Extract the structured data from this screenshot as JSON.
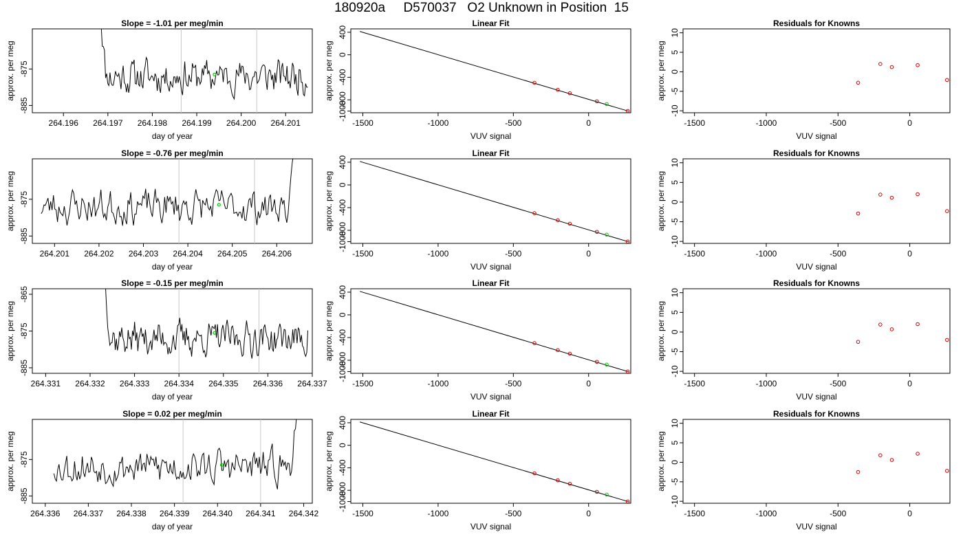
{
  "figure": {
    "title": "180920a     D570037   O2 Unknown in Position  15"
  },
  "colors": {
    "trace": "#000000",
    "marker_green": "#00c800",
    "point_red": "#cc0000",
    "vline_gray": "#c8c8c8"
  },
  "chart_data": [
    {
      "row": 1,
      "type": "line",
      "title": "Slope =  -1.01  per meg/min",
      "xlabel": "day of year",
      "ylabel": "approx. per meg",
      "xlim": [
        264.1953,
        264.2016
      ],
      "ylim": [
        -887,
        -864
      ],
      "xticks": [
        264.196,
        264.197,
        264.198,
        264.199,
        264.2,
        264.201
      ],
      "xtick_labels": [
        "264.196",
        "264.197",
        "264.198",
        "264.199",
        "264.200",
        "264.201"
      ],
      "yticks": [
        -885,
        -875
      ],
      "ytick_labels": [
        "-885",
        "-875"
      ],
      "x_start": 264.1968,
      "x_end": 264.2015,
      "start_spike": true,
      "end_spike": false,
      "vlines": [
        264.19865,
        264.20035
      ],
      "green_marker": {
        "x": 264.1994,
        "y": -876.5
      },
      "trace_seed": 11
    },
    {
      "row": 1,
      "type": "scatter",
      "title": "Linear Fit",
      "xlabel": "VUV signal",
      "ylabel": "approx. per meg",
      "xlim": [
        -1580,
        280
      ],
      "ylim": [
        -1030,
        460
      ],
      "xticks": [
        -1500,
        -1000,
        -500,
        0
      ],
      "xtick_labels": [
        "-1500",
        "-1000",
        "-500",
        "0"
      ],
      "yticks": [
        -1000,
        -800,
        -400,
        0,
        400
      ],
      "ytick_labels": [
        "-1000",
        "-800",
        "-400",
        "0",
        "400"
      ],
      "fit_line": {
        "x": [
          -1520,
          265
        ],
        "y": [
          414,
          -1002
        ]
      },
      "known_points": {
        "x": [
          -360,
          -205,
          -125,
          55,
          260
        ],
        "y": [
          -498,
          -622,
          -684,
          -827,
          -998
        ]
      },
      "unknown_point": {
        "x": 120,
        "y": -876
      }
    },
    {
      "row": 1,
      "type": "scatter",
      "title": "Residuals for Knowns",
      "xlabel": "VUV signal",
      "ylabel": "approx. per meg",
      "xlim": [
        -1580,
        280
      ],
      "ylim": [
        -10.5,
        11
      ],
      "xticks": [
        -1500,
        -1000,
        -500,
        0
      ],
      "xtick_labels": [
        "-1500",
        "-1000",
        "-500",
        "0"
      ],
      "yticks": [
        -10,
        -5,
        0,
        5,
        10
      ],
      "ytick_labels": [
        "-10",
        "-5",
        "0",
        "5",
        "10"
      ],
      "known_points": {
        "x": [
          -360,
          -205,
          -125,
          55,
          260
        ],
        "y": [
          -2.8,
          2.0,
          1.2,
          1.7,
          -2.1
        ]
      }
    },
    {
      "row": 2,
      "type": "line",
      "title": "Slope =  -0.76  per meg/min",
      "xlabel": "day of year",
      "ylabel": "approx. per meg",
      "xlim": [
        264.2005,
        264.2068
      ],
      "ylim": [
        -887,
        -864
      ],
      "xticks": [
        264.201,
        264.202,
        264.203,
        264.204,
        264.205,
        264.206
      ],
      "xtick_labels": [
        "264.201",
        "264.202",
        "264.203",
        "264.204",
        "264.205",
        "264.206"
      ],
      "yticks": [
        -885,
        -875
      ],
      "ytick_labels": [
        "-885",
        "-875"
      ],
      "x_start": 264.2007,
      "x_end": 264.2065,
      "start_spike": false,
      "end_spike": true,
      "vlines": [
        264.2038,
        264.2055
      ],
      "green_marker": {
        "x": 264.2047,
        "y": -876.5
      },
      "trace_seed": 23
    },
    {
      "row": 2,
      "type": "scatter",
      "title": "Linear Fit",
      "xlabel": "VUV signal",
      "ylabel": "approx. per meg",
      "xlim": [
        -1580,
        280
      ],
      "ylim": [
        -1030,
        460
      ],
      "xticks": [
        -1500,
        -1000,
        -500,
        0
      ],
      "xtick_labels": [
        "-1500",
        "-1000",
        "-500",
        "0"
      ],
      "yticks": [
        -1000,
        -800,
        -400,
        0,
        400
      ],
      "ytick_labels": [
        "-1000",
        "-800",
        "-400",
        "0",
        "400"
      ],
      "fit_line": {
        "x": [
          -1520,
          265
        ],
        "y": [
          414,
          -1002
        ]
      },
      "known_points": {
        "x": [
          -360,
          -205,
          -125,
          55,
          260
        ],
        "y": [
          -498,
          -622,
          -684,
          -827,
          -998
        ]
      },
      "unknown_point": {
        "x": 120,
        "y": -876
      }
    },
    {
      "row": 2,
      "type": "scatter",
      "title": "Residuals for Knowns",
      "xlabel": "VUV signal",
      "ylabel": "approx. per meg",
      "xlim": [
        -1580,
        280
      ],
      "ylim": [
        -10.5,
        11
      ],
      "xticks": [
        -1500,
        -1000,
        -500,
        0
      ],
      "xtick_labels": [
        "-1500",
        "-1000",
        "-500",
        "0"
      ],
      "yticks": [
        -10,
        -5,
        0,
        5,
        10
      ],
      "ytick_labels": [
        "-10",
        "-5",
        "0",
        "5",
        "10"
      ],
      "known_points": {
        "x": [
          -360,
          -205,
          -125,
          55,
          260
        ],
        "y": [
          -2.9,
          1.9,
          1.1,
          2.0,
          -2.3
        ]
      }
    },
    {
      "row": 3,
      "type": "line",
      "title": "Slope =  -0.15  per meg/min",
      "xlabel": "day of year",
      "ylabel": "approx. per meg",
      "xlim": [
        264.3307,
        264.337
      ],
      "ylim": [
        -886.5,
        -863.5
      ],
      "xticks": [
        264.331,
        264.332,
        264.333,
        264.334,
        264.335,
        264.336,
        264.337
      ],
      "xtick_labels": [
        "264.331",
        "264.332",
        "264.333",
        "264.334",
        "264.335",
        "264.336",
        "264.337"
      ],
      "yticks": [
        -885,
        -875,
        -865
      ],
      "ytick_labels": [
        "-885",
        "-875",
        "-865"
      ],
      "x_start": 264.3323,
      "x_end": 264.3369,
      "start_spike": true,
      "end_spike": false,
      "vlines": [
        264.334,
        264.3358
      ],
      "green_marker": {
        "x": 264.3348,
        "y": -875.5
      },
      "trace_seed": 37
    },
    {
      "row": 3,
      "type": "scatter",
      "title": "Linear Fit",
      "xlabel": "VUV signal",
      "ylabel": "approx. per meg",
      "xlim": [
        -1580,
        280
      ],
      "ylim": [
        -1030,
        460
      ],
      "xticks": [
        -1500,
        -1000,
        -500,
        0
      ],
      "xtick_labels": [
        "-1500",
        "-1000",
        "-500",
        "0"
      ],
      "yticks": [
        -1000,
        -800,
        -400,
        0,
        400
      ],
      "ytick_labels": [
        "-1000",
        "-800",
        "-400",
        "0",
        "400"
      ],
      "fit_line": {
        "x": [
          -1520,
          265
        ],
        "y": [
          414,
          -1002
        ]
      },
      "known_points": {
        "x": [
          -360,
          -205,
          -125,
          55,
          260
        ],
        "y": [
          -498,
          -622,
          -684,
          -827,
          -998
        ]
      },
      "unknown_point": {
        "x": 120,
        "y": -876
      }
    },
    {
      "row": 3,
      "type": "scatter",
      "title": "Residuals for Knowns",
      "xlabel": "VUV signal",
      "ylabel": "approx. per meg",
      "xlim": [
        -1580,
        280
      ],
      "ylim": [
        -10.5,
        11
      ],
      "xticks": [
        -1500,
        -1000,
        -500,
        0
      ],
      "xtick_labels": [
        "-1500",
        "-1000",
        "-500",
        "0"
      ],
      "yticks": [
        -10,
        -5,
        0,
        5,
        10
      ],
      "ytick_labels": [
        "-10",
        "-5",
        "0",
        "5",
        "10"
      ],
      "known_points": {
        "x": [
          -360,
          -205,
          -125,
          55,
          260
        ],
        "y": [
          -2.5,
          1.9,
          0.7,
          2.0,
          -2.0
        ]
      }
    },
    {
      "row": 4,
      "type": "line",
      "title": "Slope =  0.02  per meg/min",
      "xlabel": "day of year",
      "ylabel": "approx. per meg",
      "xlim": [
        264.3357,
        264.3422
      ],
      "ylim": [
        -887,
        -864
      ],
      "xticks": [
        264.336,
        264.337,
        264.338,
        264.339,
        264.34,
        264.341,
        264.342
      ],
      "xtick_labels": [
        "264.336",
        "264.337",
        "264.338",
        "264.339",
        "264.340",
        "264.341",
        "264.342"
      ],
      "yticks": [
        -885,
        -875
      ],
      "ytick_labels": [
        "-885",
        "-875"
      ],
      "x_start": 264.3362,
      "x_end": 264.3419,
      "start_spike": false,
      "end_spike": true,
      "vlines": [
        264.3392,
        264.341
      ],
      "green_marker": {
        "x": 264.3401,
        "y": -876.5
      },
      "trace_seed": 53
    },
    {
      "row": 4,
      "type": "scatter",
      "title": "Linear Fit",
      "xlabel": "VUV signal",
      "ylabel": "approx. per meg",
      "xlim": [
        -1580,
        280
      ],
      "ylim": [
        -1030,
        460
      ],
      "xticks": [
        -1500,
        -1000,
        -500,
        0
      ],
      "xtick_labels": [
        "-1500",
        "-1000",
        "-500",
        "0"
      ],
      "yticks": [
        -1000,
        -800,
        -400,
        0,
        400
      ],
      "ytick_labels": [
        "-1000",
        "-800",
        "-400",
        "0",
        "400"
      ],
      "fit_line": {
        "x": [
          -1520,
          265
        ],
        "y": [
          414,
          -1002
        ]
      },
      "known_points": {
        "x": [
          -360,
          -205,
          -125,
          55,
          260
        ],
        "y": [
          -498,
          -622,
          -684,
          -827,
          -998
        ]
      },
      "unknown_point": {
        "x": 120,
        "y": -876
      }
    },
    {
      "row": 4,
      "type": "scatter",
      "title": "Residuals for Knowns",
      "xlabel": "VUV signal",
      "ylabel": "approx. per meg",
      "xlim": [
        -1580,
        280
      ],
      "ylim": [
        -10.5,
        11
      ],
      "xticks": [
        -1500,
        -1000,
        -500,
        0
      ],
      "xtick_labels": [
        "-1500",
        "-1000",
        "-500",
        "0"
      ],
      "yticks": [
        -10,
        -5,
        0,
        5,
        10
      ],
      "ytick_labels": [
        "-10",
        "-5",
        "0",
        "5",
        "10"
      ],
      "known_points": {
        "x": [
          -360,
          -205,
          -125,
          55,
          260
        ],
        "y": [
          -2.5,
          1.8,
          0.6,
          2.2,
          -2.2
        ]
      }
    }
  ]
}
